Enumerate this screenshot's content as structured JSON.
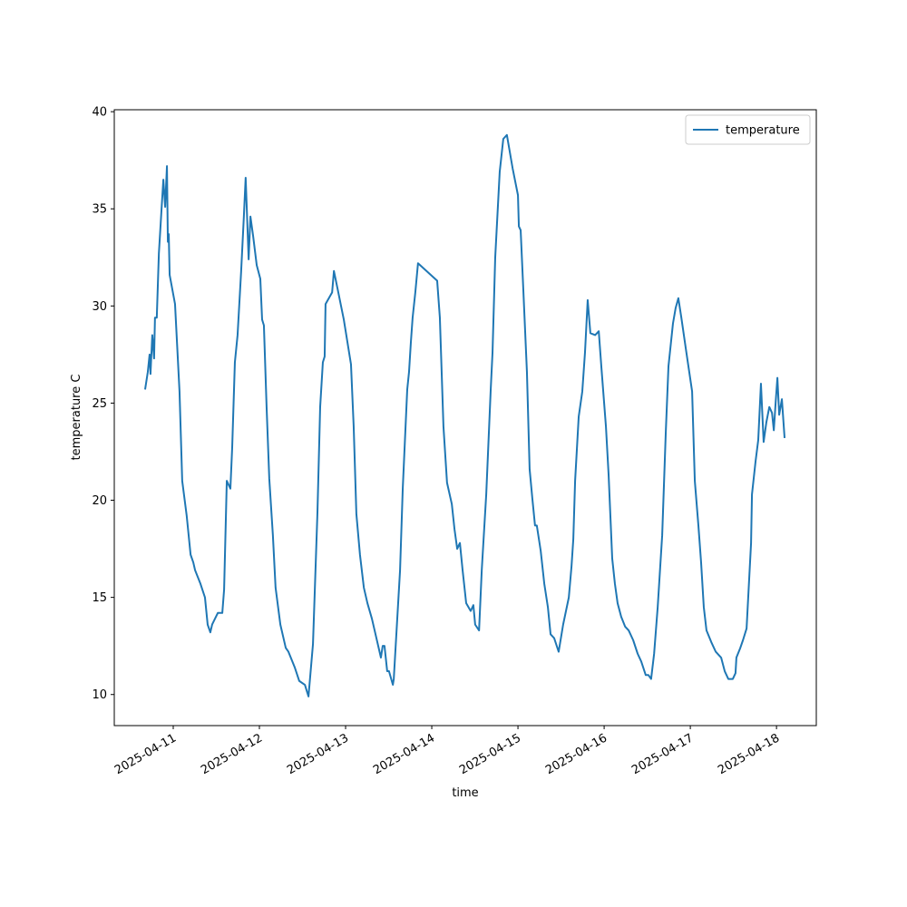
{
  "chart_data": {
    "type": "line",
    "xlabel": "time",
    "ylabel": "temperature C",
    "legend": "upper right",
    "grid": false,
    "x": [
      "2025-04-10 16:10",
      "2025-04-10 16:55",
      "2025-04-10 17:25",
      "2025-04-10 17:40",
      "2025-04-10 18:10",
      "2025-04-10 18:40",
      "2025-04-10 18:55",
      "2025-04-10 19:25",
      "2025-04-10 20:00",
      "2025-04-10 20:45",
      "2025-04-10 21:15",
      "2025-04-10 21:45",
      "2025-04-10 22:15",
      "2025-04-10 22:30",
      "2025-04-10 22:45",
      "2025-04-10 23:00",
      "2025-04-11 00:30",
      "2025-04-11 01:45",
      "2025-04-11 02:30",
      "2025-04-11 03:45",
      "2025-04-11 04:50",
      "2025-04-11 05:35",
      "2025-04-11 06:05",
      "2025-04-11 07:35",
      "2025-04-11 08:50",
      "2025-04-11 09:35",
      "2025-04-11 10:20",
      "2025-04-11 10:50",
      "2025-04-11 12:25",
      "2025-04-11 13:40",
      "2025-04-11 14:10",
      "2025-04-11 14:55",
      "2025-04-11 15:55",
      "2025-04-11 16:25",
      "2025-04-11 17:10",
      "2025-04-11 17:55",
      "2025-04-11 18:55",
      "2025-04-11 19:40",
      "2025-04-11 20:10",
      "2025-04-11 21:00",
      "2025-04-11 21:30",
      "2025-04-11 22:15",
      "2025-04-11 23:15",
      "2025-04-12 00:15",
      "2025-04-12 00:45",
      "2025-04-12 01:15",
      "2025-04-12 02:00",
      "2025-04-12 02:45",
      "2025-04-12 03:45",
      "2025-04-12 04:30",
      "2025-04-12 05:50",
      "2025-04-12 07:20",
      "2025-04-12 08:05",
      "2025-04-12 09:50",
      "2025-04-12 11:05",
      "2025-04-12 12:40",
      "2025-04-12 13:40",
      "2025-04-12 14:55",
      "2025-04-12 16:10",
      "2025-04-12 16:55",
      "2025-04-12 17:40",
      "2025-04-12 18:10",
      "2025-04-12 18:25",
      "2025-04-12 20:15",
      "2025-04-12 20:45",
      "2025-04-12 21:45",
      "2025-04-12 23:30",
      "2025-04-13 01:30",
      "2025-04-13 02:15",
      "2025-04-13 03:00",
      "2025-04-13 04:00",
      "2025-04-13 05:05",
      "2025-04-13 06:05",
      "2025-04-13 07:20",
      "2025-04-13 08:20",
      "2025-04-13 09:50",
      "2025-04-13 10:20",
      "2025-04-13 10:50",
      "2025-04-13 11:35",
      "2025-04-13 12:05",
      "2025-04-13 13:10",
      "2025-04-13 13:25",
      "2025-04-13 15:10",
      "2025-04-13 15:55",
      "2025-04-13 17:10",
      "2025-04-13 17:40",
      "2025-04-13 18:10",
      "2025-04-13 18:40",
      "2025-04-13 19:25",
      "2025-04-13 20:10",
      "2025-04-14 01:30",
      "2025-04-14 02:15",
      "2025-04-14 03:15",
      "2025-04-14 04:15",
      "2025-04-14 05:35",
      "2025-04-14 06:20",
      "2025-04-14 07:05",
      "2025-04-14 07:50",
      "2025-04-14 08:35",
      "2025-04-14 09:35",
      "2025-04-14 10:50",
      "2025-04-14 11:35",
      "2025-04-14 12:05",
      "2025-04-14 13:10",
      "2025-04-14 13:55",
      "2025-04-14 15:10",
      "2025-04-14 16:25",
      "2025-04-14 16:55",
      "2025-04-14 17:40",
      "2025-04-14 18:55",
      "2025-04-14 19:55",
      "2025-04-14 20:55",
      "2025-04-14 22:30",
      "2025-04-15 00:00",
      "2025-04-15 00:15",
      "2025-04-15 00:45",
      "2025-04-15 01:30",
      "2025-04-15 02:30",
      "2025-04-15 03:15",
      "2025-04-15 04:00",
      "2025-04-15 04:45",
      "2025-04-15 05:15",
      "2025-04-15 06:20",
      "2025-04-15 07:20",
      "2025-04-15 08:20",
      "2025-04-15 09:05",
      "2025-04-15 10:05",
      "2025-04-15 11:20",
      "2025-04-15 12:35",
      "2025-04-15 14:10",
      "2025-04-15 14:55",
      "2025-04-15 15:25",
      "2025-04-15 15:55",
      "2025-04-15 16:55",
      "2025-04-15 17:55",
      "2025-04-15 18:40",
      "2025-04-15 19:25",
      "2025-04-15 20:10",
      "2025-04-15 21:30",
      "2025-04-15 22:30",
      "2025-04-15 23:15",
      "2025-04-16 00:30",
      "2025-04-16 01:15",
      "2025-04-16 02:15",
      "2025-04-16 03:00",
      "2025-04-16 03:45",
      "2025-04-16 04:45",
      "2025-04-16 05:50",
      "2025-04-16 06:50",
      "2025-04-16 08:05",
      "2025-04-16 09:20",
      "2025-04-16 10:20",
      "2025-04-16 11:35",
      "2025-04-16 12:20",
      "2025-04-16 13:05",
      "2025-04-16 13:55",
      "2025-04-16 14:55",
      "2025-04-16 16:10",
      "2025-04-16 17:10",
      "2025-04-16 17:55",
      "2025-04-16 19:10",
      "2025-04-16 19:55",
      "2025-04-16 20:40",
      "2025-04-16 21:30",
      "2025-04-16 22:45",
      "2025-04-17 00:30",
      "2025-04-17 01:15",
      "2025-04-17 02:15",
      "2025-04-17 03:00",
      "2025-04-17 03:45",
      "2025-04-17 04:30",
      "2025-04-17 05:50",
      "2025-04-17 07:05",
      "2025-04-17 08:35",
      "2025-04-17 09:35",
      "2025-04-17 10:35",
      "2025-04-17 11:50",
      "2025-04-17 12:35",
      "2025-04-17 12:50",
      "2025-04-17 13:55",
      "2025-04-17 14:40",
      "2025-04-17 15:40",
      "2025-04-17 16:55",
      "2025-04-17 17:10",
      "2025-04-17 18:10",
      "2025-04-17 18:55",
      "2025-04-17 19:40",
      "2025-04-17 20:25",
      "2025-04-17 21:10",
      "2025-04-17 22:00",
      "2025-04-17 22:45",
      "2025-04-17 23:15",
      "2025-04-17 23:45",
      "2025-04-18 00:15",
      "2025-04-18 00:45",
      "2025-04-18 01:30",
      "2025-04-18 02:15"
    ],
    "series": [
      {
        "name": "temperature",
        "color": "#1f77b4",
        "values": [
          25.7,
          26.6,
          27.5,
          26.5,
          28.5,
          27.3,
          29.4,
          29.4,
          32.7,
          35.0,
          36.5,
          35.1,
          37.2,
          33.3,
          33.7,
          31.6,
          30.1,
          25.6,
          21.0,
          19.2,
          17.2,
          16.8,
          16.4,
          15.7,
          15.0,
          13.6,
          13.2,
          13.6,
          14.2,
          14.2,
          15.4,
          21.0,
          20.6,
          22.7,
          27.1,
          28.5,
          31.8,
          34.6,
          36.6,
          32.4,
          34.6,
          33.6,
          32.1,
          31.4,
          29.3,
          29.0,
          24.8,
          21.1,
          18.2,
          15.5,
          13.6,
          12.4,
          12.2,
          11.4,
          10.7,
          10.5,
          9.9,
          12.6,
          19.4,
          24.8,
          27.1,
          27.4,
          30.1,
          30.7,
          31.8,
          30.9,
          29.3,
          27.0,
          23.8,
          19.3,
          17.2,
          15.5,
          14.7,
          13.9,
          13.1,
          11.9,
          12.5,
          12.5,
          11.2,
          11.2,
          10.5,
          10.8,
          16.4,
          20.6,
          25.7,
          26.6,
          28.1,
          29.4,
          30.7,
          32.2,
          31.3,
          29.4,
          23.8,
          20.9,
          19.8,
          18.5,
          17.5,
          17.8,
          16.4,
          14.7,
          14.3,
          14.6,
          13.6,
          13.3,
          16.4,
          20.3,
          25.7,
          27.6,
          32.5,
          36.9,
          38.6,
          38.8,
          37.1,
          35.7,
          34.1,
          33.9,
          30.8,
          26.6,
          21.6,
          20.1,
          18.7,
          18.7,
          17.4,
          15.7,
          14.5,
          13.1,
          12.9,
          12.2,
          13.6,
          15.0,
          16.6,
          18.0,
          21.0,
          24.3,
          25.6,
          27.6,
          30.3,
          28.6,
          28.5,
          28.7,
          26.8,
          23.8,
          21.3,
          17.0,
          15.7,
          14.7,
          14.0,
          13.5,
          13.3,
          12.8,
          12.1,
          11.7,
          11.0,
          11.0,
          10.8,
          12.1,
          14.5,
          18.2,
          23.5,
          26.9,
          29.1,
          29.9,
          30.4,
          29.4,
          27.8,
          25.6,
          21.0,
          18.7,
          16.8,
          14.5,
          13.3,
          12.7,
          12.2,
          11.9,
          11.2,
          10.8,
          10.8,
          11.1,
          11.9,
          12.4,
          12.8,
          13.4,
          17.8,
          20.3,
          22.0,
          23.1,
          26.0,
          23.0,
          24.0,
          24.8,
          24.5,
          23.6,
          25.0,
          26.3,
          24.4,
          25.2,
          23.2
        ]
      }
    ],
    "xlim": [
      "2025-04-10 07:35",
      "2025-04-18 11:05"
    ],
    "xticks": [
      "2025-04-11",
      "2025-04-12",
      "2025-04-13",
      "2025-04-14",
      "2025-04-15",
      "2025-04-16",
      "2025-04-17",
      "2025-04-18"
    ],
    "ylim": [
      8.4,
      40.1
    ],
    "yticks": [
      10,
      15,
      20,
      25,
      30,
      35,
      40
    ]
  }
}
